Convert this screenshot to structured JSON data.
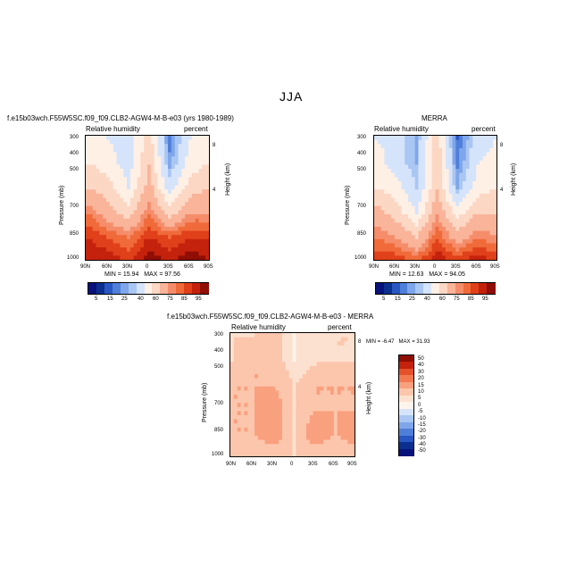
{
  "figure": {
    "title": "JJA",
    "colors": {
      "blue_dark": "#0b2f8f",
      "blue_mid": "#4f7fd9",
      "blue_light": "#d5e4fa",
      "red_dark": "#a80f06",
      "red_mid": "#f06a3a",
      "red_light": "#fcd7c4"
    }
  },
  "panels": [
    {
      "id": "model",
      "header": "f.e15b03wch.F55W5SC.f09_f09.CLB2-AGW4-M-B-e03 (yrs 1980-1989)",
      "left_label": "Relative humidity",
      "right_label": "percent",
      "y_axis_label": "Pressure (mb)",
      "y_ticks": [
        "300",
        "400",
        "500",
        "700",
        "850",
        "1000"
      ],
      "x_ticks": [
        "90N",
        "60N",
        "30N",
        "0",
        "30S",
        "60S",
        "90S"
      ],
      "height_axis_label": "Height (km)",
      "height_ticks": [
        "8",
        "4"
      ],
      "stats": {
        "min_label": "MIN =",
        "min": "15.94",
        "max_label": "MAX =",
        "max": "97.56"
      }
    },
    {
      "id": "merra",
      "header": "MERRA",
      "left_label": "Relative humidity",
      "right_label": "percent",
      "y_axis_label": "Pressure (mb)",
      "y_ticks": [
        "300",
        "400",
        "500",
        "700",
        "850",
        "1000"
      ],
      "x_ticks": [
        "90N",
        "60N",
        "30N",
        "0",
        "30S",
        "60S",
        "90S"
      ],
      "height_axis_label": "Height (km)",
      "height_ticks": [
        "8",
        "4"
      ],
      "stats": {
        "min_label": "MIN =",
        "min": "12.63",
        "max_label": "MAX =",
        "max": "94.05"
      }
    },
    {
      "id": "difference",
      "header": "f.e15b03wch.F55W5SC.f09_f09.CLB2-AGW4-M-B-e03 - MERRA",
      "left_label": "Relative humidity",
      "right_label": "percent",
      "y_axis_label": "Pressure (mb)",
      "y_ticks": [
        "300",
        "400",
        "500",
        "700",
        "850",
        "1000"
      ],
      "x_ticks": [
        "90N",
        "60N",
        "30N",
        "0",
        "30S",
        "60S",
        "90S"
      ],
      "height_axis_label": "Height (km)",
      "height_ticks": [
        "8",
        "4"
      ],
      "stats": {
        "min_label": "MIN =",
        "min": "-6.47",
        "max_label": "MAX =",
        "max": "31.93"
      }
    }
  ],
  "colorbars": {
    "absolute": {
      "labels": [
        "5",
        "15",
        "25",
        "40",
        "60",
        "75",
        "85",
        "95"
      ]
    },
    "difference": {
      "labels": [
        "50",
        "40",
        "30",
        "20",
        "15",
        "10",
        "5",
        "0",
        "-5",
        "-10",
        "-15",
        "-20",
        "-30",
        "-40",
        "-50"
      ]
    }
  },
  "chart_data": [
    {
      "type": "heatmap",
      "title": "f.e15b03wch.F55W5SC.f09_f09.CLB2-AGW4-M-B-e03 (yrs 1980-1989)",
      "variable": "Relative humidity",
      "units": "percent",
      "xlabel": "",
      "ylabel": "Pressure (mb)",
      "x_categories": [
        "90N",
        "60N",
        "30N",
        "0",
        "30S",
        "60S",
        "90S"
      ],
      "y_levels_mb": [
        300,
        400,
        500,
        700,
        850,
        1000
      ],
      "x_lat": [
        90,
        60,
        30,
        0,
        -30,
        -60,
        -90
      ],
      "values": [
        [
          45,
          40,
          35,
          55,
          18,
          40,
          45
        ],
        [
          50,
          45,
          35,
          60,
          22,
          45,
          50
        ],
        [
          60,
          55,
          40,
          65,
          35,
          55,
          60
        ],
        [
          75,
          65,
          55,
          75,
          55,
          70,
          70
        ],
        [
          85,
          80,
          75,
          85,
          80,
          85,
          85
        ],
        [
          90,
          90,
          85,
          95,
          90,
          95,
          90
        ]
      ],
      "min": 15.94,
      "max": 97.56,
      "contour_levels": [
        5,
        10,
        15,
        20,
        25,
        30,
        40,
        50,
        60,
        70,
        75,
        80,
        85,
        90,
        95
      ]
    },
    {
      "type": "heatmap",
      "title": "MERRA",
      "variable": "Relative humidity",
      "units": "percent",
      "xlabel": "",
      "ylabel": "Pressure (mb)",
      "x_categories": [
        "90N",
        "60N",
        "30N",
        "0",
        "30S",
        "60S",
        "90S"
      ],
      "y_levels_mb": [
        300,
        400,
        500,
        700,
        850,
        1000
      ],
      "x_lat": [
        90,
        60,
        30,
        0,
        -30,
        -60,
        -90
      ],
      "values": [
        [
          40,
          35,
          25,
          55,
          15,
          35,
          40
        ],
        [
          45,
          35,
          25,
          60,
          18,
          40,
          45
        ],
        [
          50,
          45,
          30,
          60,
          25,
          45,
          50
        ],
        [
          65,
          55,
          40,
          70,
          45,
          60,
          60
        ],
        [
          75,
          70,
          60,
          80,
          65,
          75,
          70
        ],
        [
          85,
          85,
          80,
          90,
          85,
          90,
          85
        ]
      ],
      "min": 12.63,
      "max": 94.05,
      "contour_levels": [
        5,
        10,
        15,
        20,
        25,
        30,
        40,
        50,
        60,
        70,
        75,
        80,
        85,
        90,
        95
      ]
    },
    {
      "type": "heatmap",
      "title": "f.e15b03wch.F55W5SC.f09_f09.CLB2-AGW4-M-B-e03 - MERRA",
      "variable": "Relative humidity",
      "units": "percent",
      "xlabel": "",
      "ylabel": "Pressure (mb)",
      "x_categories": [
        "90N",
        "60N",
        "30N",
        "0",
        "30S",
        "60S",
        "90S"
      ],
      "y_levels_mb": [
        300,
        400,
        500,
        700,
        850,
        1000
      ],
      "x_lat": [
        90,
        60,
        30,
        0,
        -30,
        -60,
        -90
      ],
      "values": [
        [
          5,
          5,
          10,
          0,
          3,
          5,
          5
        ],
        [
          5,
          10,
          10,
          0,
          4,
          5,
          5
        ],
        [
          10,
          10,
          10,
          5,
          10,
          10,
          10
        ],
        [
          10,
          10,
          15,
          5,
          10,
          10,
          10
        ],
        [
          10,
          10,
          15,
          5,
          15,
          10,
          15
        ],
        [
          5,
          5,
          5,
          5,
          5,
          5,
          5
        ]
      ],
      "min": -6.47,
      "max": 31.93,
      "contour_levels": [
        -50,
        -40,
        -30,
        -20,
        -15,
        -10,
        -5,
        0,
        5,
        10,
        15,
        20,
        30,
        40,
        50
      ]
    }
  ]
}
